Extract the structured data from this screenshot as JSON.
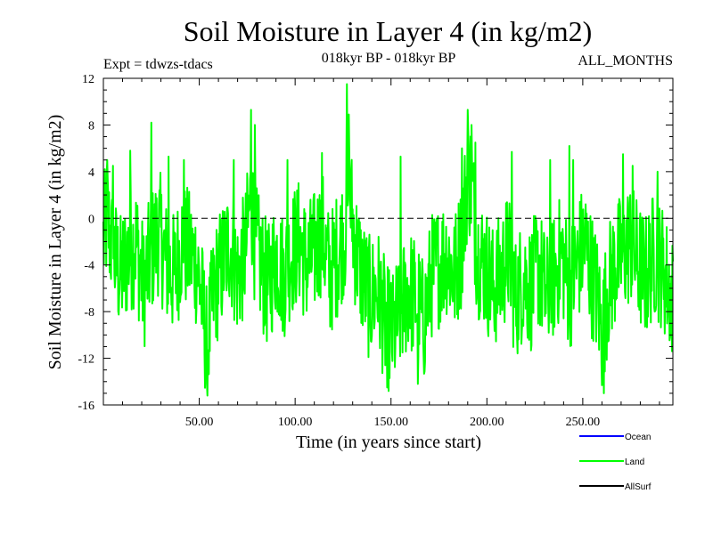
{
  "chart_data": {
    "type": "line",
    "title": "Soil Moisture in Layer 4 (in kg/m2)",
    "subtitle_left": "Expt = tdwzs-tdacs",
    "subtitle_center": "018kyr BP - 018kyr BP",
    "subtitle_right": "ALL_MONTHS",
    "xlabel": "Time (in years since start)",
    "ylabel": "Soil Moisture in Layer 4 (in kg/m2)",
    "xlim": [
      0,
      297
    ],
    "ylim": [
      -16,
      12
    ],
    "x_ticks": [
      50,
      100,
      150,
      200,
      250
    ],
    "x_tick_labels": [
      "50.00",
      "100.00",
      "150.00",
      "200.00",
      "250.00"
    ],
    "y_ticks": [
      -16,
      -12,
      -8,
      -4,
      0,
      4,
      8,
      12
    ],
    "y_tick_labels": [
      "-16",
      "-12",
      "-8",
      "-4",
      "0",
      "4",
      "8",
      "12"
    ],
    "reference_line": 0,
    "sample_step_years": 0.25,
    "legend": [
      {
        "name": "Ocean",
        "color": "#0000ff"
      },
      {
        "name": "Land",
        "color": "#00ff00"
      },
      {
        "name": "AllSurf",
        "color": "#000000"
      }
    ],
    "series": [
      {
        "name": "Land",
        "color": "#00ff00",
        "anchors_x": [
          0,
          2,
          5,
          9,
          13,
          17,
          21,
          25,
          29,
          33,
          37,
          41,
          45,
          49,
          52,
          54,
          58,
          62,
          66,
          70,
          74,
          77,
          79,
          82,
          86,
          90,
          94,
          98,
          102,
          106,
          110,
          114,
          118,
          122,
          126,
          128,
          131,
          135,
          139,
          143,
          147,
          151,
          155,
          159,
          163,
          167,
          171,
          175,
          179,
          183,
          187,
          190,
          192,
          195,
          199,
          203,
          207,
          211,
          215,
          219,
          223,
          227,
          231,
          235,
          239,
          243,
          247,
          251,
          255,
          258,
          260,
          263,
          267,
          271,
          275,
          279,
          283,
          287,
          291,
          295,
          297
        ],
        "anchors_y": [
          -2,
          0,
          -3,
          -5,
          -3,
          -2,
          -6,
          -3,
          -1,
          -4,
          -5,
          -2,
          -3,
          -4,
          -8,
          -11,
          -6,
          -4,
          -2,
          -5,
          -3,
          2,
          -2,
          -4,
          -6,
          -3,
          -5,
          -3,
          -2,
          -4,
          -3,
          -1,
          -5,
          -3,
          -1,
          3,
          -2,
          -5,
          -7,
          -6,
          -9,
          -10,
          -8,
          -6,
          -7,
          -9,
          -5,
          -4,
          -3,
          -5,
          -2,
          4,
          3,
          -3,
          -4,
          -6,
          -5,
          -3,
          -7,
          -5,
          -6,
          -4,
          -7,
          -5,
          -3,
          -6,
          -4,
          -2,
          -5,
          -7,
          -10,
          -6,
          -4,
          -3,
          -2,
          -4,
          -5,
          -3,
          -4,
          -6,
          -7
        ],
        "spikes": [
          [
            2,
            5.0
          ],
          [
            5,
            4.5
          ],
          [
            14,
            5.8
          ],
          [
            25,
            8.2
          ],
          [
            34,
            5.3
          ],
          [
            42,
            5.0
          ],
          [
            54,
            -14.2
          ],
          [
            68,
            5.0
          ],
          [
            77,
            9.3
          ],
          [
            79,
            8.0
          ],
          [
            96,
            5.0
          ],
          [
            114,
            5.6
          ],
          [
            127,
            11.5
          ],
          [
            128,
            8.9
          ],
          [
            148,
            -14.5
          ],
          [
            155,
            5.3
          ],
          [
            164,
            -14.2
          ],
          [
            187,
            6.0
          ],
          [
            190,
            9.3
          ],
          [
            192,
            8.0
          ],
          [
            194,
            6.5
          ],
          [
            213,
            5.7
          ],
          [
            233,
            5.0
          ],
          [
            243,
            6.2
          ],
          [
            245,
            5.0
          ],
          [
            261,
            -15.0
          ],
          [
            271,
            5.5
          ],
          [
            276,
            4.5
          ],
          [
            289,
            4.0
          ]
        ]
      }
    ]
  }
}
